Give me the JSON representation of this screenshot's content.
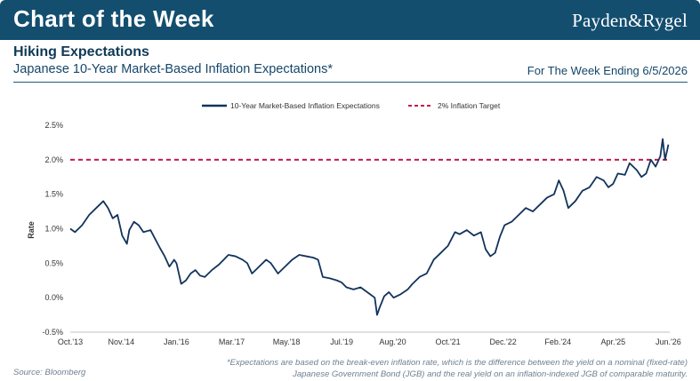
{
  "header": {
    "banner_title": "Chart of the Week",
    "brand": "Payden&Rygel"
  },
  "title": "Hiking Expectations",
  "subtitle": "Japanese 10-Year Market-Based Inflation Expectations*",
  "date_note": "For The Week Ending 6/5/2026",
  "source": "Source: Bloomberg",
  "footnote": "*Expectations are based on the break-even inflation rate, which is the difference between the yield on a nominal (fixed-rate) Japanese Government Bond (JGB) and the real yield on an inflation-indexed JGB of comparable maturity.",
  "colors": {
    "banner": "#134e6f",
    "series": "#12335c",
    "target": "#c8174a",
    "axis_text": "#333333"
  },
  "chart_data": {
    "type": "line",
    "xlabel": "",
    "ylabel": "Rate",
    "ylim": [
      -0.5,
      2.5
    ],
    "xlim": [
      2013.75,
      2026.45
    ],
    "grid": false,
    "legend_position": "top-center",
    "y_ticks": [
      {
        "value": 2.5,
        "label": "2.5%"
      },
      {
        "value": 2.0,
        "label": "2.0%"
      },
      {
        "value": 1.5,
        "label": "1.5%"
      },
      {
        "value": 1.0,
        "label": "1.0%"
      },
      {
        "value": 0.5,
        "label": "0.5%"
      },
      {
        "value": 0.0,
        "label": "0.0%"
      },
      {
        "value": -0.5,
        "label": "-0.5%"
      }
    ],
    "x_ticks": [
      {
        "value": 2013.75,
        "label": "Oct.'13"
      },
      {
        "value": 2014.83,
        "label": "Nov.'14"
      },
      {
        "value": 2016.0,
        "label": "Jan.'16"
      },
      {
        "value": 2017.17,
        "label": "Mar.'17"
      },
      {
        "value": 2018.33,
        "label": "May.'18"
      },
      {
        "value": 2019.5,
        "label": "Jul.'19"
      },
      {
        "value": 2020.58,
        "label": "Aug.'20"
      },
      {
        "value": 2021.75,
        "label": "Oct.'21"
      },
      {
        "value": 2022.92,
        "label": "Dec.'22"
      },
      {
        "value": 2024.08,
        "label": "Feb.'24"
      },
      {
        "value": 2025.25,
        "label": "Apr.'25"
      },
      {
        "value": 2026.42,
        "label": "Jun.'26"
      }
    ],
    "series": [
      {
        "name": "10-Year Market-Based Inflation Expectations",
        "style": "solid",
        "x": [
          2013.75,
          2013.85,
          2014.0,
          2014.15,
          2014.3,
          2014.45,
          2014.55,
          2014.65,
          2014.75,
          2014.85,
          2014.95,
          2015.0,
          2015.1,
          2015.2,
          2015.3,
          2015.45,
          2015.55,
          2015.65,
          2015.75,
          2015.85,
          2015.95,
          2016.0,
          2016.05,
          2016.1,
          2016.2,
          2016.3,
          2016.4,
          2016.5,
          2016.6,
          2016.75,
          2016.9,
          2017.0,
          2017.1,
          2017.25,
          2017.4,
          2017.5,
          2017.6,
          2017.75,
          2017.9,
          2018.0,
          2018.15,
          2018.3,
          2018.45,
          2018.6,
          2018.75,
          2018.9,
          2019.0,
          2019.1,
          2019.25,
          2019.4,
          2019.5,
          2019.6,
          2019.75,
          2019.9,
          2020.0,
          2020.1,
          2020.2,
          2020.25,
          2020.3,
          2020.4,
          2020.5,
          2020.6,
          2020.75,
          2020.9,
          2021.0,
          2021.15,
          2021.3,
          2021.45,
          2021.6,
          2021.75,
          2021.9,
          2022.0,
          2022.15,
          2022.3,
          2022.45,
          2022.55,
          2022.65,
          2022.75,
          2022.85,
          2022.95,
          2023.1,
          2023.25,
          2023.4,
          2023.55,
          2023.7,
          2023.85,
          2024.0,
          2024.1,
          2024.2,
          2024.3,
          2024.45,
          2024.6,
          2024.75,
          2024.9,
          2025.05,
          2025.15,
          2025.25,
          2025.35,
          2025.5,
          2025.6,
          2025.75,
          2025.85,
          2025.95,
          2026.05,
          2026.15,
          2026.25,
          2026.3,
          2026.35,
          2026.4,
          2026.42
        ],
        "values": [
          1.0,
          0.95,
          1.05,
          1.2,
          1.3,
          1.4,
          1.3,
          1.15,
          1.2,
          0.9,
          0.78,
          0.98,
          1.1,
          1.05,
          0.95,
          0.98,
          0.85,
          0.72,
          0.6,
          0.45,
          0.55,
          0.5,
          0.35,
          0.2,
          0.25,
          0.35,
          0.4,
          0.32,
          0.3,
          0.4,
          0.48,
          0.55,
          0.62,
          0.6,
          0.55,
          0.5,
          0.35,
          0.45,
          0.55,
          0.5,
          0.35,
          0.45,
          0.55,
          0.62,
          0.6,
          0.58,
          0.55,
          0.3,
          0.28,
          0.25,
          0.22,
          0.15,
          0.12,
          0.15,
          0.1,
          0.05,
          0.0,
          -0.25,
          -0.15,
          0.02,
          0.08,
          0.0,
          0.05,
          0.12,
          0.2,
          0.3,
          0.35,
          0.55,
          0.65,
          0.75,
          0.95,
          0.92,
          0.98,
          0.9,
          0.95,
          0.7,
          0.6,
          0.65,
          0.88,
          1.05,
          1.1,
          1.2,
          1.3,
          1.25,
          1.35,
          1.45,
          1.5,
          1.7,
          1.55,
          1.3,
          1.4,
          1.55,
          1.6,
          1.75,
          1.7,
          1.6,
          1.65,
          1.8,
          1.78,
          1.95,
          1.85,
          1.75,
          1.8,
          2.0,
          1.9,
          2.05,
          2.3,
          2.0,
          2.15,
          2.22
        ]
      },
      {
        "name": "2% Inflation Target",
        "style": "dashed",
        "x": [
          2013.75,
          2026.42
        ],
        "values": [
          2.0,
          2.0
        ]
      }
    ]
  }
}
